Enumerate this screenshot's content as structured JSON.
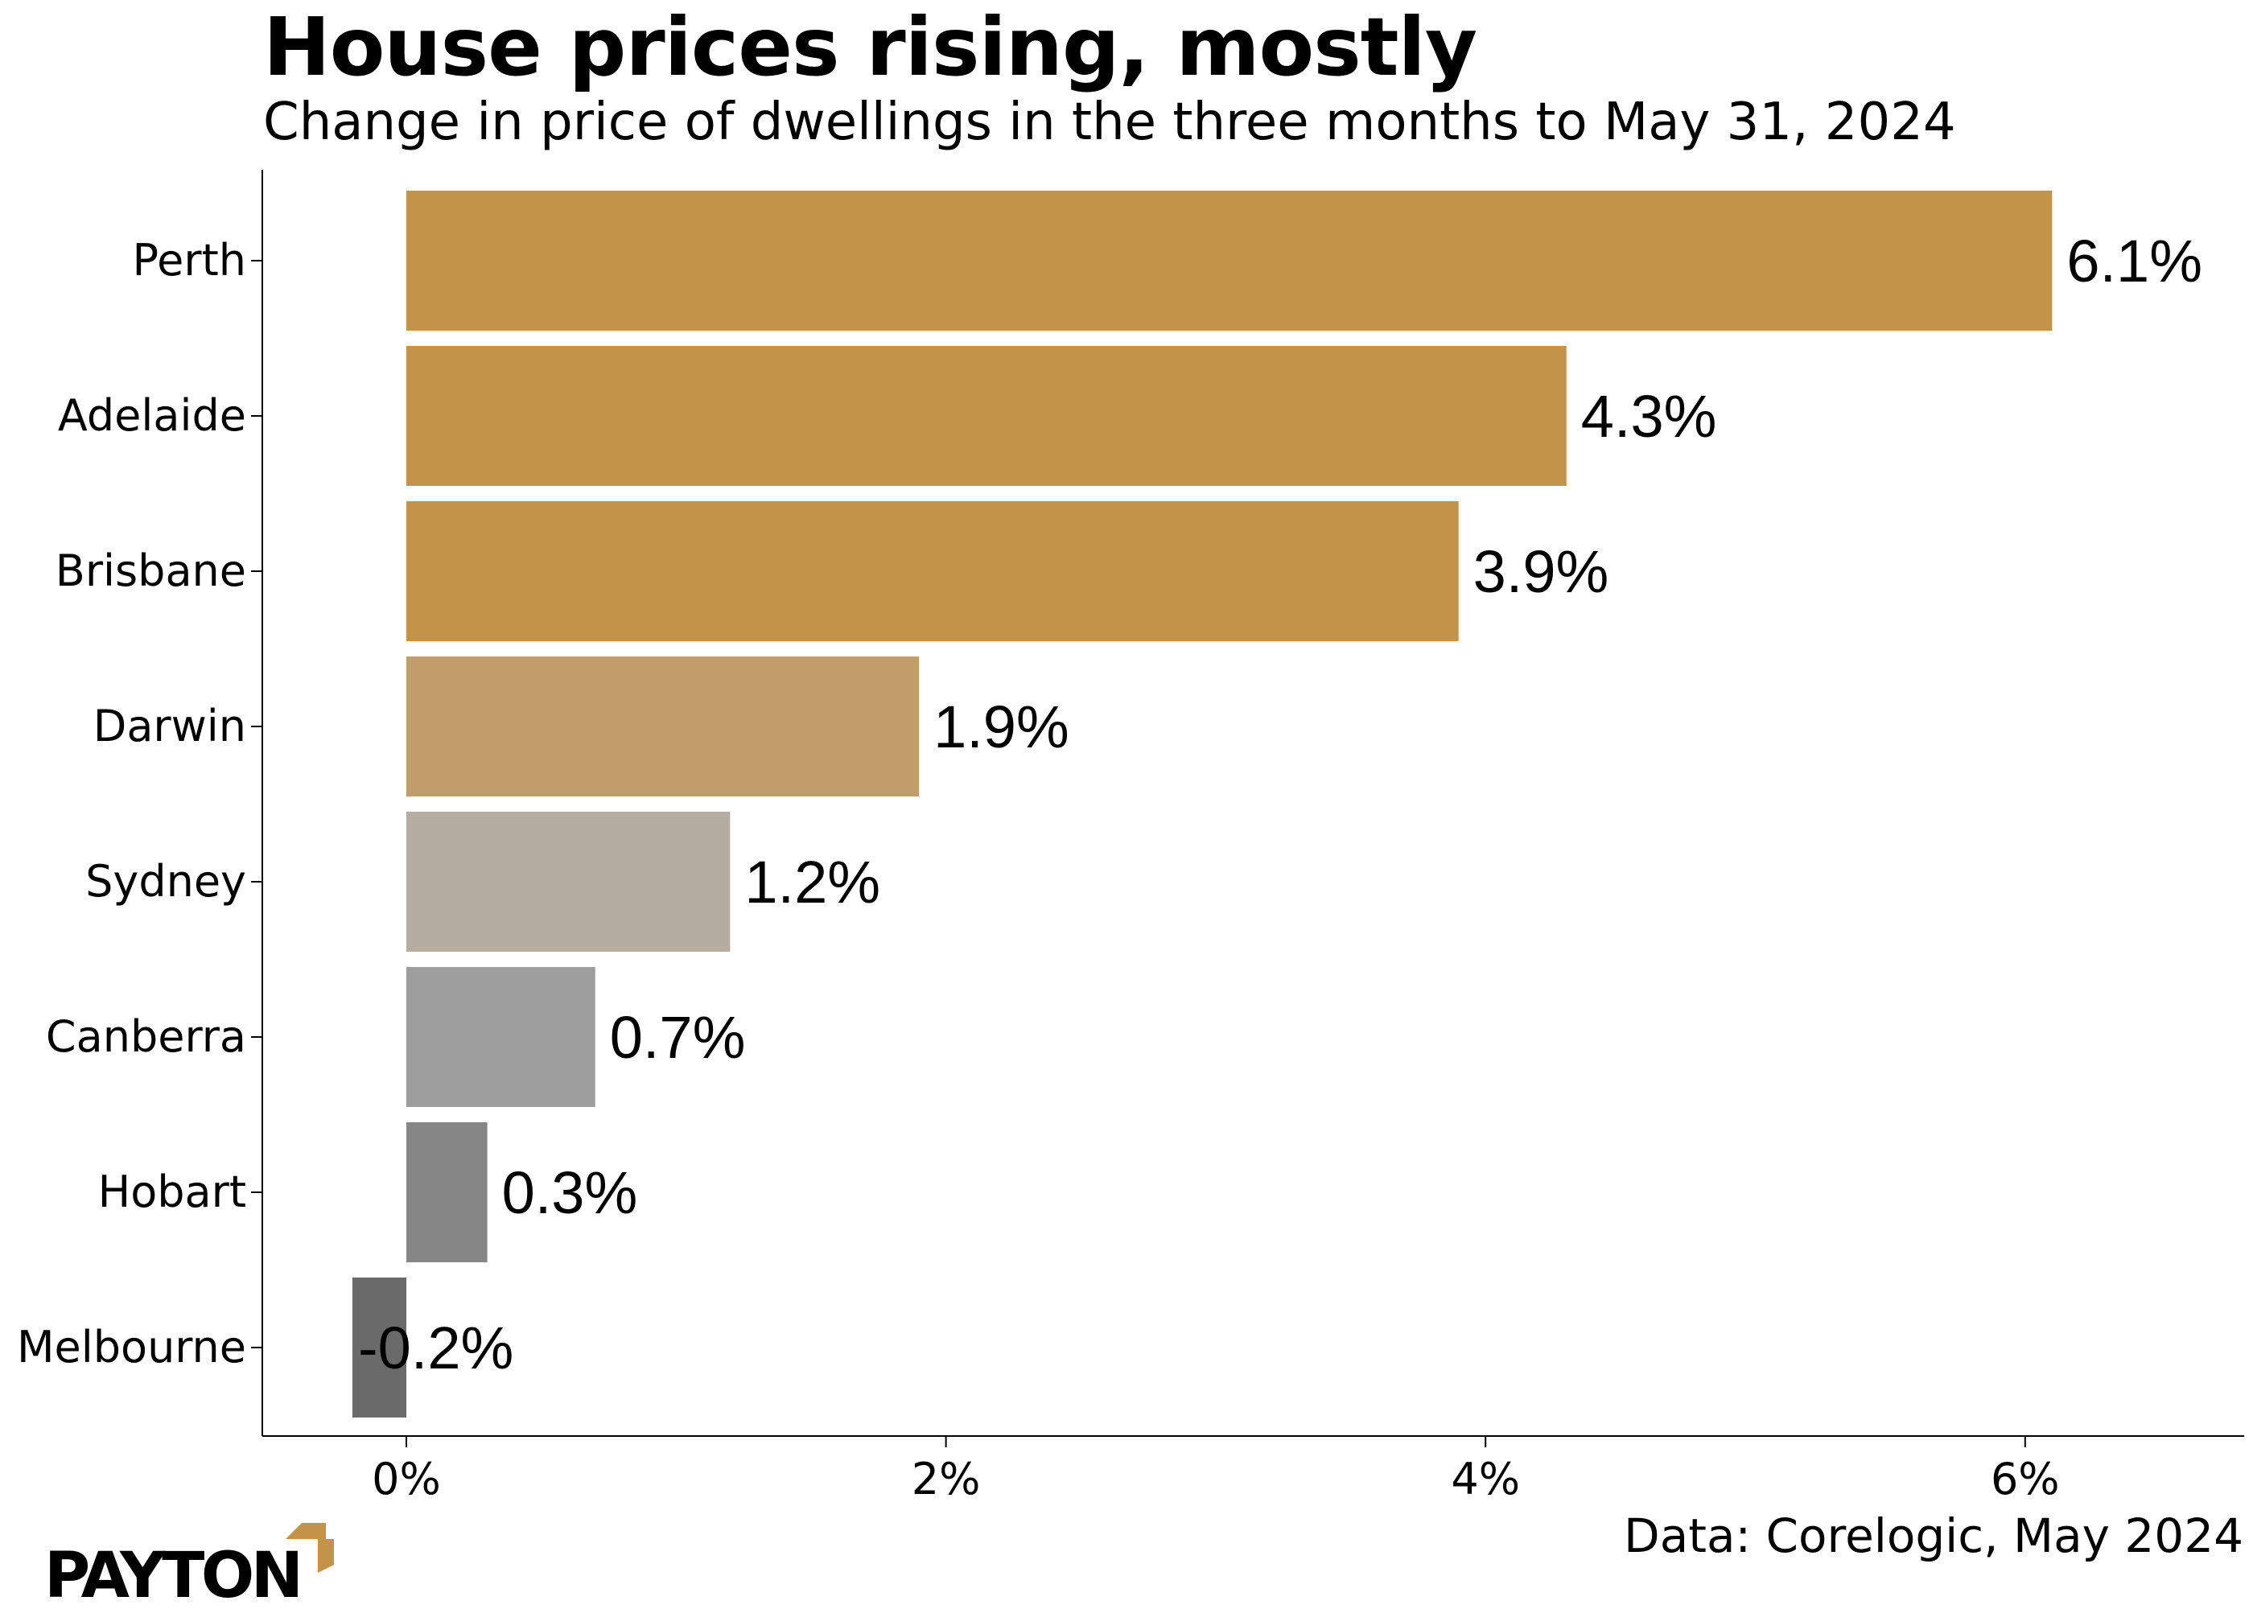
{
  "chart_data": {
    "type": "bar",
    "orientation": "horizontal",
    "title": "House prices rising, mostly",
    "subtitle": "Change in price of dwellings in the three months to May 31, 2024",
    "categories": [
      "Perth",
      "Adelaide",
      "Brisbane",
      "Darwin",
      "Sydney",
      "Canberra",
      "Hobart",
      "Melbourne"
    ],
    "values": [
      6.1,
      4.3,
      3.9,
      1.9,
      1.2,
      0.7,
      0.3,
      -0.2
    ],
    "value_labels": [
      "6.1%",
      "4.3%",
      "3.9%",
      "1.9%",
      "1.2%",
      "0.7%",
      "0.3%",
      "-0.2%"
    ],
    "colors": [
      "#C39349",
      "#C39349",
      "#C39349",
      "#C29D6C",
      "#B5ADA2",
      "#9E9E9E",
      "#858585",
      "#6A6A6A"
    ],
    "x_ticks": [
      0,
      2,
      4,
      6
    ],
    "x_tick_labels": [
      "0%",
      "2%",
      "4%",
      "6%"
    ],
    "xlim": [
      -0.55,
      7.0
    ],
    "xlabel": "",
    "ylabel": "",
    "grid": false
  },
  "source": "Data: Corelogic, May 2024",
  "logo": {
    "text": "PAYTON",
    "accent": "#C39349"
  }
}
